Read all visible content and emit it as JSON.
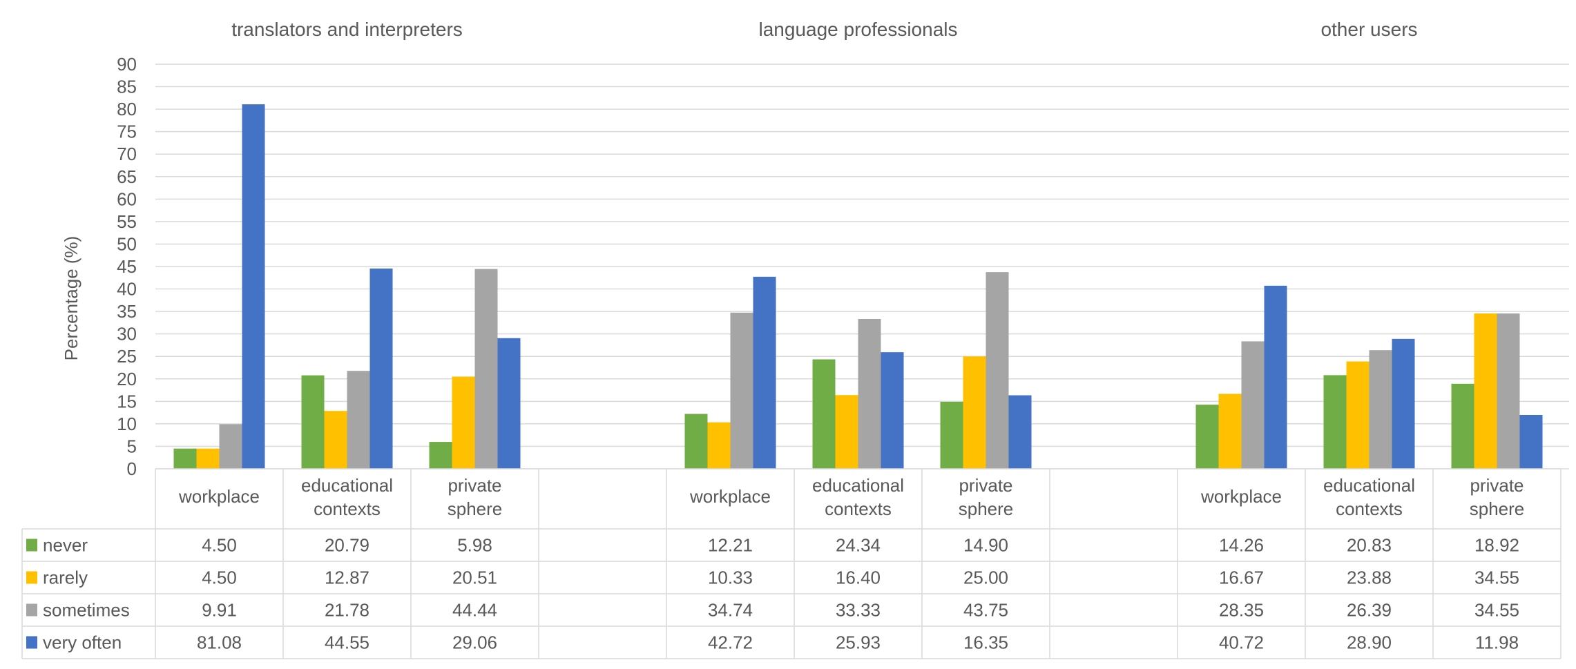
{
  "chart_data": {
    "type": "bar",
    "ylabel": "Percentage (%)",
    "ylim": [
      0,
      90
    ],
    "ytick_step": 5,
    "grid": true,
    "legend_placement": "data-table-left",
    "groups": [
      {
        "title": "translators and interpreters",
        "categories": [
          [
            "workplace"
          ],
          [
            "educational",
            "contexts"
          ],
          [
            "private",
            "sphere"
          ]
        ]
      },
      {
        "title": "language professionals",
        "categories": [
          [
            "workplace"
          ],
          [
            "educational",
            "contexts"
          ],
          [
            "private",
            "sphere"
          ]
        ]
      },
      {
        "title": "other users",
        "categories": [
          [
            "workplace"
          ],
          [
            "educational",
            "contexts"
          ],
          [
            "private",
            "sphere"
          ]
        ]
      }
    ],
    "series": [
      {
        "name": "never",
        "color": "#70AD47",
        "values": [
          "4.50",
          "20.79",
          "5.98",
          "12.21",
          "24.34",
          "14.90",
          "14.26",
          "20.83",
          "18.92"
        ]
      },
      {
        "name": "rarely",
        "color": "#FFC000",
        "values": [
          "4.50",
          "12.87",
          "20.51",
          "10.33",
          "16.40",
          "25.00",
          "16.67",
          "23.88",
          "34.55"
        ]
      },
      {
        "name": "sometimes",
        "color": "#A5A5A5",
        "values": [
          "9.91",
          "21.78",
          "44.44",
          "34.74",
          "33.33",
          "43.75",
          "28.35",
          "26.39",
          "34.55"
        ]
      },
      {
        "name": "very often",
        "color": "#4472C4",
        "values": [
          "81.08",
          "44.55",
          "29.06",
          "42.72",
          "25.93",
          "16.35",
          "40.72",
          "28.90",
          "11.98"
        ]
      }
    ]
  }
}
